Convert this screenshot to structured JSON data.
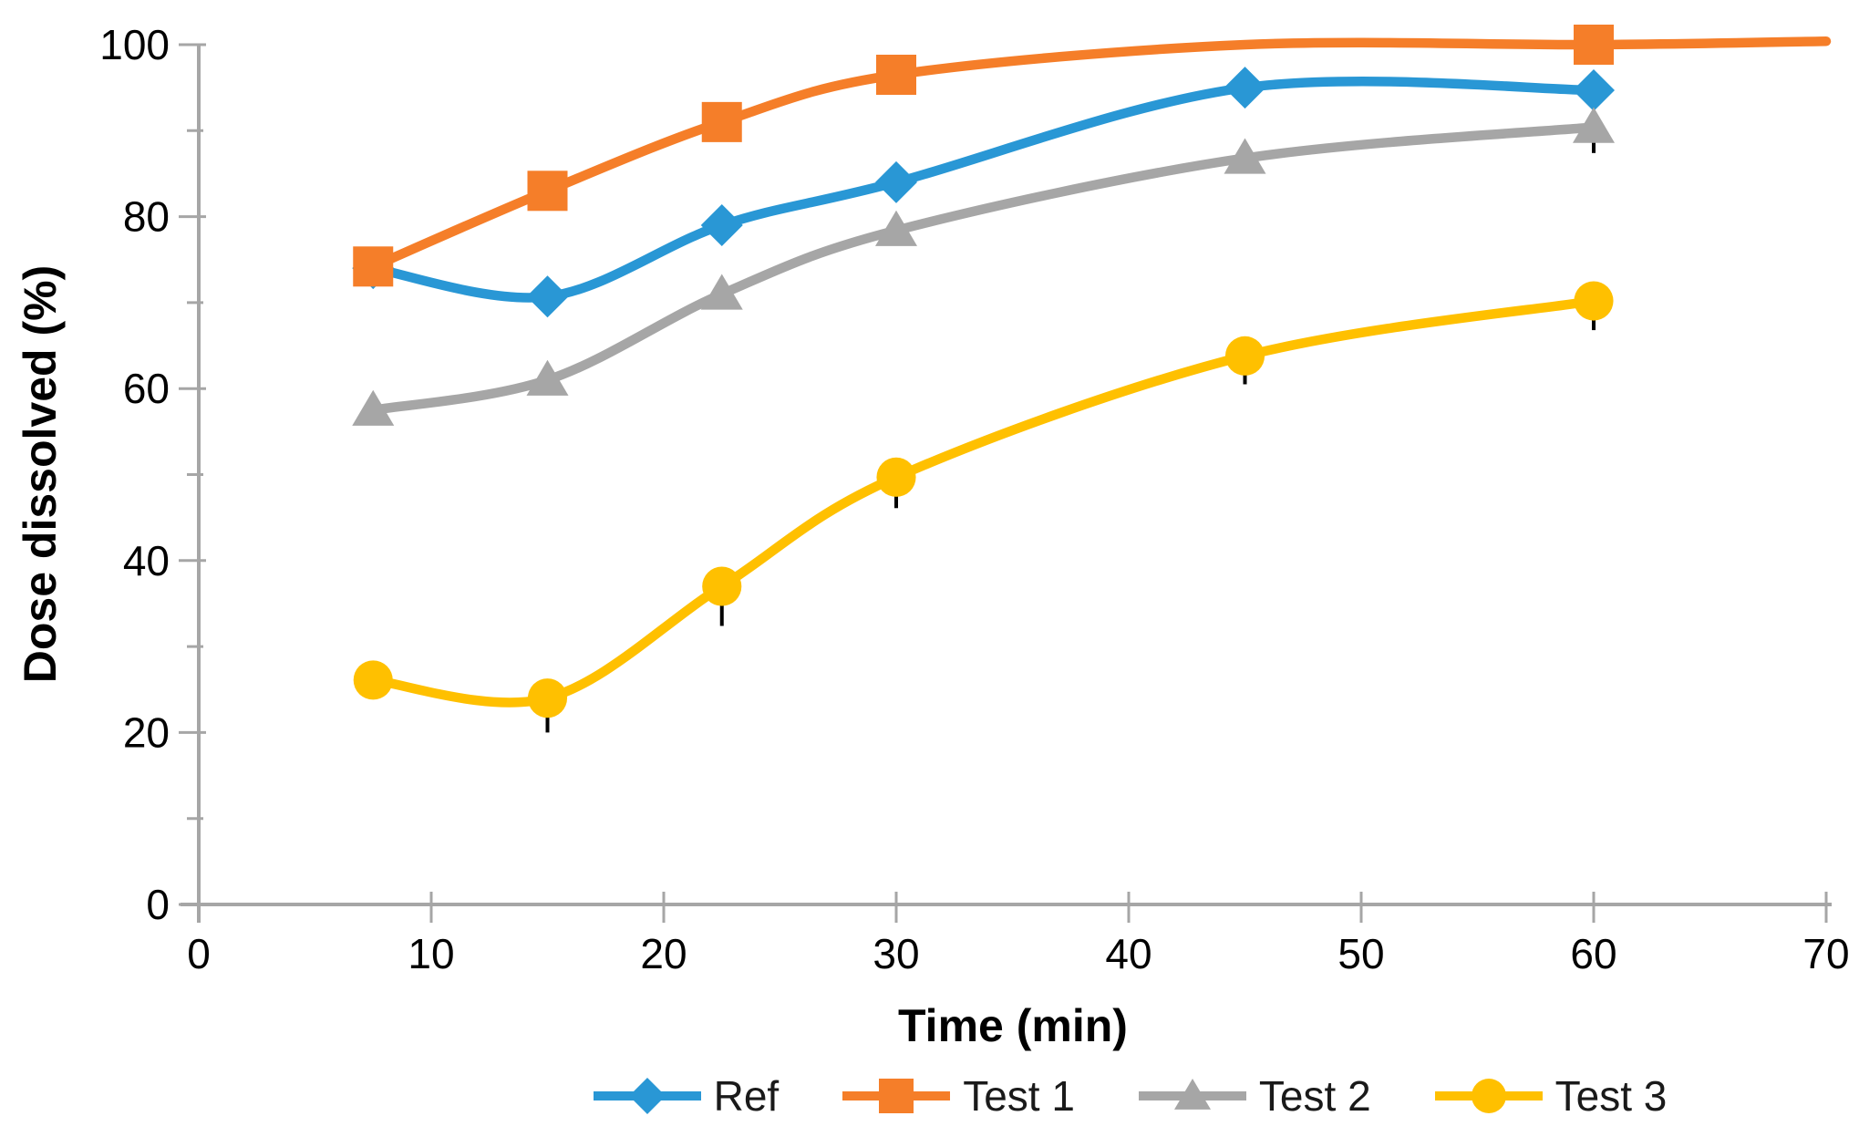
{
  "axis_titles": {
    "y": "Dose dissolved (%)",
    "x": "Time (min)"
  },
  "axes": {
    "x": {
      "min": 0,
      "max": 70,
      "major_ticks": [
        0,
        10,
        20,
        30,
        40,
        50,
        60,
        70
      ]
    },
    "y": {
      "min": 0,
      "max": 100,
      "major_ticks": [
        0,
        20,
        40,
        60,
        80,
        100
      ],
      "minor_ticks": [
        10,
        30,
        50,
        70,
        90
      ]
    }
  },
  "colors": {
    "axis": "#A6A6A6",
    "tick_label": "#000000",
    "error_bar": "#000000"
  },
  "chart_data": {
    "type": "line",
    "title": "",
    "xlabel": "Time (min)",
    "ylabel": "Dose dissolved (%)",
    "xlim": [
      0,
      70
    ],
    "ylim": [
      0,
      100
    ],
    "grid": false,
    "legend_position": "bottom",
    "smooth_lines": true,
    "x": [
      7.5,
      15,
      22.5,
      30,
      45,
      60
    ],
    "series": [
      {
        "name": "Ref",
        "color": "#2997D5",
        "marker": "diamond",
        "values": [
          74,
          70.7,
          79,
          84,
          95,
          94.7
        ],
        "error_down": [
          null,
          null,
          null,
          null,
          null,
          null
        ]
      },
      {
        "name": "Test 1",
        "color": "#F57E29",
        "marker": "square",
        "values": [
          74.2,
          83,
          91,
          96.5,
          100,
          100
        ],
        "hidden_markers": [
          45
        ],
        "line_extension": {
          "x": 70,
          "y": 100.4
        },
        "error_down": [
          null,
          null,
          null,
          null,
          null,
          null
        ]
      },
      {
        "name": "Test 2",
        "color": "#A6A6A6",
        "marker": "triangle",
        "values": [
          57.5,
          61,
          71,
          78.4,
          86.8,
          90.4
        ],
        "error_down": [
          null,
          null,
          null,
          null,
          null,
          3.0
        ]
      },
      {
        "name": "Test 3",
        "color": "#FFC000",
        "marker": "circle",
        "values": [
          26.1,
          24,
          37,
          49.7,
          63.8,
          70.2
        ],
        "error_down": [
          null,
          4.0,
          4.6,
          3.6,
          3.3,
          3.4
        ]
      }
    ]
  }
}
